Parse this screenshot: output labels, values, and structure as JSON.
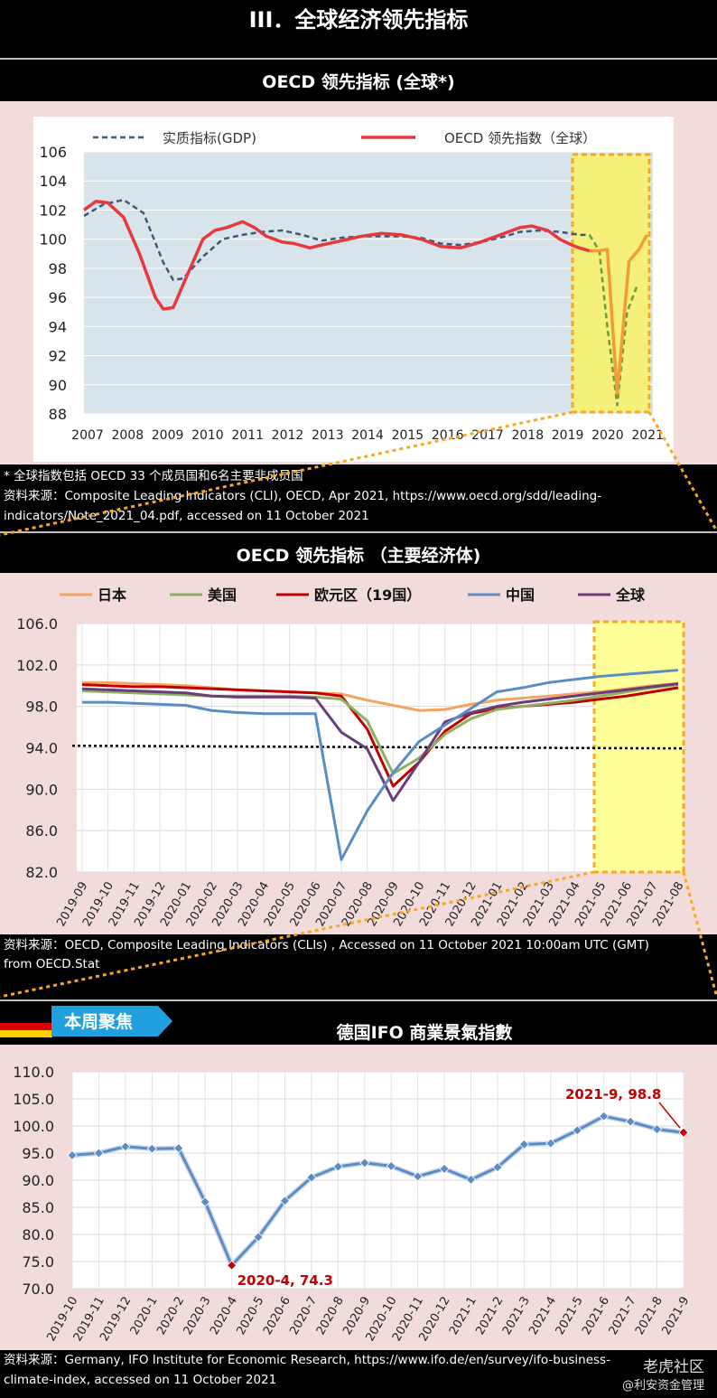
{
  "page_title": "III．全球经济领先指标",
  "chart1": {
    "title": "OECD 领先指标 (全球*)",
    "legend": [
      "实质指标(GDP)",
      "OECD 领先指数（全球）"
    ],
    "notes": [
      "* 全球指数包括 OECD 33 个成员国和6名主要非成员国",
      "资料来源：Composite Leading Indicators (CLI), OECD, Apr 2021, https://www.oecd.org/sdd/leading-",
      "indicators/Note_2021_04.pdf, accessed on 11 October 2021"
    ]
  },
  "chart2": {
    "title": "OECD 领先指标 （主要经济体)",
    "notes": [
      "资料来源：OECD, Composite Leading Indicators (CLIs) , Accessed on 11 October 2021 10:00am UTC (GMT)",
      "from OECD.Stat"
    ]
  },
  "chart3": {
    "tag": "本周聚焦",
    "title": "德国IFO 商業景氣指數",
    "notes": [
      "资料来源：Germany, IFO Institute for Economic Research, https://www.ifo.de/en/survey/ifo-business-",
      "climate-index, accessed on 11 October 2021"
    ]
  },
  "watermark": [
    "老虎社区",
    "@利安资金管理"
  ],
  "colors": {
    "chart1_gdp": "#3c5a78",
    "chart1_cli": "#e8383d",
    "chart1_cli_recent": "#f39c34",
    "chart1_gdp_recent": "#6a9e3f",
    "japan": "#f4a460",
    "usa": "#8fb060",
    "euro": "#c00000",
    "china": "#5b8cc4",
    "global": "#6b3c7a",
    "ifo": "#5b8cc4",
    "highlight": "#ffff99",
    "highlight_border": "#f7a823"
  },
  "chart_data": [
    {
      "type": "line",
      "years": [
        "2007",
        "2008",
        "2009",
        "2010",
        "2011",
        "2012",
        "2013",
        "2014",
        "2015",
        "2016",
        "2017",
        "2018",
        "2019",
        "2020",
        "2021"
      ],
      "ylim": [
        88,
        106
      ],
      "yticks": [
        106,
        104,
        102,
        100,
        98,
        96,
        94,
        92,
        90,
        88
      ],
      "series": [
        {
          "name": "实质指标(GDP)",
          "style": "dashed",
          "x": [
            2007.0,
            2007.5,
            2008.0,
            2008.5,
            2009.0,
            2009.25,
            2009.5,
            2010.0,
            2010.5,
            2011.0,
            2011.5,
            2012.0,
            2012.5,
            2013.0,
            2013.5,
            2014.0,
            2014.5,
            2015.0,
            2015.5,
            2016.0,
            2016.5,
            2017.0,
            2017.5,
            2018.0,
            2018.5,
            2019.0,
            2019.5,
            2019.75,
            2020.0,
            2020.2,
            2020.45,
            2020.7,
            2020.95
          ],
          "y": [
            101.6,
            102.4,
            102.7,
            101.8,
            98.4,
            97.2,
            97.3,
            98.8,
            100.0,
            100.3,
            100.5,
            100.6,
            100.3,
            99.9,
            100.1,
            100.2,
            100.2,
            100.2,
            100.1,
            99.7,
            99.6,
            99.8,
            100.1,
            100.5,
            100.6,
            100.5,
            100.3,
            100.3,
            99.2,
            94.0,
            88.6,
            95.0,
            96.8
          ]
        },
        {
          "name": "OECD 领先指数（全球）",
          "style": "solid",
          "x": [
            2007.0,
            2007.3,
            2007.6,
            2008.0,
            2008.4,
            2008.8,
            2009.0,
            2009.25,
            2009.6,
            2010.0,
            2010.3,
            2010.6,
            2011.0,
            2011.3,
            2011.6,
            2012.0,
            2012.3,
            2012.7,
            2013.0,
            2013.5,
            2014.0,
            2014.5,
            2015.0,
            2015.5,
            2016.0,
            2016.5,
            2017.0,
            2017.5,
            2018.0,
            2018.3,
            2018.7,
            2019.0,
            2019.3,
            2019.5,
            2019.75,
            2020.0,
            2020.2,
            2020.45,
            2020.6,
            2020.75,
            2021.0,
            2021.2
          ],
          "y": [
            102.0,
            102.6,
            102.5,
            101.5,
            99.0,
            96.0,
            95.2,
            95.3,
            97.5,
            100.0,
            100.6,
            100.8,
            101.2,
            100.8,
            100.2,
            99.8,
            99.7,
            99.4,
            99.6,
            99.9,
            100.2,
            100.4,
            100.3,
            100.0,
            99.5,
            99.4,
            99.8,
            100.3,
            100.8,
            100.9,
            100.6,
            100.0,
            99.6,
            99.4,
            99.2,
            99.2,
            99.3,
            89.4,
            94.0,
            98.5,
            99.3,
            100.3
          ]
        }
      ]
    },
    {
      "type": "line",
      "categories": [
        "2019-09",
        "2019-10",
        "2019-11",
        "2019-12",
        "2020-01",
        "2020-02",
        "2020-03",
        "2020-04",
        "2020-05",
        "2020-06",
        "2020-07",
        "2020-08",
        "2020-09",
        "2020-10",
        "2020-11",
        "2020-12",
        "2021-01",
        "2021-02",
        "2021-03",
        "2021-04",
        "2021-05",
        "2021-06",
        "2021-07",
        "2021-08"
      ],
      "ylim": [
        82,
        106
      ],
      "yticks": [
        "106.0",
        "102.0",
        "98.0",
        "94.0",
        "90.0",
        "86.0",
        "82.0"
      ],
      "reference_line": 94.2,
      "series": [
        {
          "name": "日本",
          "values": [
            100.3,
            100.3,
            100.2,
            100.1,
            100.0,
            99.8,
            99.6,
            99.5,
            99.4,
            99.3,
            99.2,
            98.6,
            98.1,
            97.6,
            97.7,
            98.2,
            98.6,
            98.8,
            99.0,
            99.2,
            99.4,
            99.7,
            100.0,
            100.2
          ]
        },
        {
          "name": "美国",
          "values": [
            99.5,
            99.4,
            99.3,
            99.2,
            99.1,
            99.0,
            99.0,
            99.0,
            99.0,
            98.9,
            98.7,
            96.6,
            91.5,
            93.0,
            95.3,
            96.8,
            97.7,
            98.0,
            98.3,
            98.6,
            99.0,
            99.4,
            99.8,
            100.1
          ]
        },
        {
          "name": "欧元区（19国）",
          "values": [
            100.1,
            100.0,
            99.9,
            99.9,
            99.8,
            99.7,
            99.6,
            99.5,
            99.4,
            99.3,
            99.0,
            95.8,
            90.3,
            92.6,
            95.6,
            97.3,
            97.8,
            98.0,
            98.2,
            98.4,
            98.7,
            99.0,
            99.4,
            99.8
          ]
        },
        {
          "name": "中国",
          "values": [
            98.4,
            98.4,
            98.3,
            98.2,
            98.1,
            97.6,
            97.4,
            97.3,
            97.3,
            97.3,
            83.2,
            87.9,
            91.6,
            94.6,
            96.2,
            97.8,
            99.4,
            99.8,
            100.3,
            100.6,
            100.9,
            101.1,
            101.3,
            101.5
          ]
        },
        {
          "name": "全球",
          "values": [
            99.7,
            99.6,
            99.5,
            99.4,
            99.3,
            99.0,
            98.9,
            98.9,
            98.9,
            98.8,
            95.5,
            93.9,
            88.9,
            92.6,
            96.5,
            97.4,
            98.0,
            98.4,
            98.7,
            99.0,
            99.3,
            99.6,
            99.9,
            100.2
          ]
        }
      ]
    },
    {
      "type": "line",
      "categories": [
        "2019-10",
        "2019-11",
        "2019-12",
        "2020-1",
        "2020-2",
        "2020-3",
        "2020-4",
        "2020-5",
        "2020-6",
        "2020-7",
        "2020-8",
        "2020-9",
        "2020-10",
        "2020-11",
        "2020-12",
        "2021-1",
        "2021-2",
        "2021-3",
        "2021-4",
        "2021-5",
        "2021-6",
        "2021-7",
        "2021-8",
        "2021-9"
      ],
      "values": [
        94.6,
        95.0,
        96.2,
        95.8,
        95.9,
        86.0,
        74.3,
        79.5,
        86.2,
        90.5,
        92.5,
        93.2,
        92.6,
        90.7,
        92.1,
        90.1,
        92.4,
        96.6,
        96.8,
        99.2,
        101.8,
        100.8,
        99.4,
        98.8
      ],
      "ylim": [
        70,
        110
      ],
      "yticks": [
        "110.0",
        "105.0",
        "100.0",
        "95.0",
        "90.0",
        "85.0",
        "80.0",
        "75.0",
        "70.0"
      ],
      "annotations": [
        "2021-9, 98.8",
        "2020-4, 74.3"
      ]
    }
  ]
}
